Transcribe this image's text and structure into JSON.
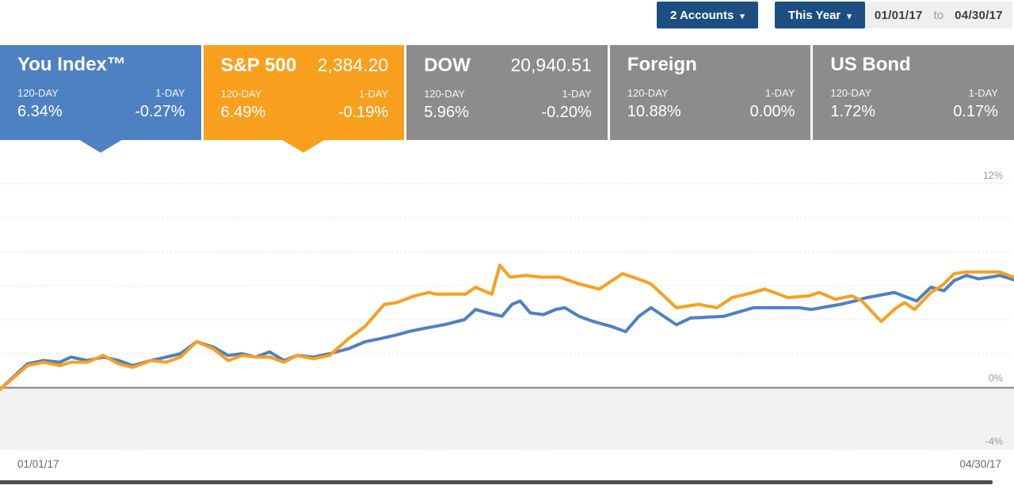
{
  "header": {
    "accounts_button": {
      "label": "2 Accounts",
      "caret": "▾"
    },
    "period_button": {
      "label": "This Year",
      "caret": "▾"
    },
    "date_range": {
      "from": "01/01/17",
      "separator": "to",
      "to": "04/30/17"
    }
  },
  "cards": [
    {
      "title": "You Index™",
      "value": "",
      "period_label": "120-DAY",
      "day_label": "1-DAY",
      "period_value": "6.34%",
      "day_value": "-0.27%",
      "color": "#4E81C2",
      "selected": true
    },
    {
      "title": "S&P 500",
      "value": "2,384.20",
      "period_label": "120-DAY",
      "day_label": "1-DAY",
      "period_value": "6.49%",
      "day_value": "-0.19%",
      "color": "#F8A01E",
      "selected": true
    },
    {
      "title": "DOW",
      "value": "20,940.51",
      "period_label": "120-DAY",
      "day_label": "1-DAY",
      "period_value": "5.96%",
      "day_value": "-0.20%",
      "color": "#8C8C8C",
      "selected": false
    },
    {
      "title": "Foreign",
      "value": "",
      "period_label": "120-DAY",
      "day_label": "1-DAY",
      "period_value": "10.88%",
      "day_value": "0.00%",
      "color": "#8C8C8C",
      "selected": false
    },
    {
      "title": "US Bond",
      "value": "",
      "period_label": "120-DAY",
      "day_label": "1-DAY",
      "period_value": "1.72%",
      "day_value": "0.17%",
      "color": "#8C8C8C",
      "selected": false
    }
  ],
  "chart_data": {
    "type": "line",
    "title": "",
    "xlabel": "",
    "ylabel": "",
    "x_axis": {
      "start_label": "01/01/17",
      "end_label": "04/30/17",
      "x_unit": "percent_of_date_range"
    },
    "y_axis": {
      "unit": "%",
      "ylim": [
        -4,
        13
      ],
      "gridline_step": 2,
      "grid": true,
      "ticks": [
        {
          "label": "12%",
          "value": 12
        },
        {
          "label": "0%",
          "value": 0
        },
        {
          "label": "-4%",
          "value": -4
        }
      ],
      "below_zero_band": true
    },
    "legend_position": "none",
    "series": [
      {
        "name": "You Index",
        "color": "#4E81C2",
        "points": [
          [
            0,
            -0.1
          ],
          [
            2.7,
            1.4
          ],
          [
            4.3,
            1.6
          ],
          [
            5.9,
            1.5
          ],
          [
            7.0,
            1.8
          ],
          [
            8.6,
            1.6
          ],
          [
            10.2,
            1.8
          ],
          [
            11.7,
            1.6
          ],
          [
            13.1,
            1.3
          ],
          [
            14.9,
            1.6
          ],
          [
            16.4,
            1.8
          ],
          [
            17.8,
            2.0
          ],
          [
            19.4,
            2.7
          ],
          [
            21.0,
            2.4
          ],
          [
            22.5,
            1.9
          ],
          [
            23.9,
            2.0
          ],
          [
            25.2,
            1.8
          ],
          [
            26.6,
            2.1
          ],
          [
            28.0,
            1.6
          ],
          [
            29.3,
            1.9
          ],
          [
            30.9,
            1.8
          ],
          [
            32.5,
            2.0
          ],
          [
            34.4,
            2.3
          ],
          [
            36.0,
            2.7
          ],
          [
            37.6,
            2.9
          ],
          [
            39.1,
            3.1
          ],
          [
            40.3,
            3.3
          ],
          [
            41.9,
            3.5
          ],
          [
            43.8,
            3.7
          ],
          [
            45.8,
            4.0
          ],
          [
            46.9,
            4.6
          ],
          [
            48.1,
            4.4
          ],
          [
            49.5,
            4.2
          ],
          [
            50.5,
            4.9
          ],
          [
            51.3,
            5.1
          ],
          [
            52.3,
            4.4
          ],
          [
            53.6,
            4.3
          ],
          [
            54.8,
            4.6
          ],
          [
            55.7,
            4.7
          ],
          [
            57.1,
            4.2
          ],
          [
            58.5,
            3.9
          ],
          [
            60.3,
            3.6
          ],
          [
            61.7,
            3.3
          ],
          [
            63.0,
            4.2
          ],
          [
            64.2,
            4.7
          ],
          [
            66.7,
            3.7
          ],
          [
            68.1,
            4.1
          ],
          [
            71.4,
            4.2
          ],
          [
            74.3,
            4.7
          ],
          [
            78.8,
            4.7
          ],
          [
            80.0,
            4.6
          ],
          [
            82.9,
            4.9
          ],
          [
            84.3,
            5.1
          ],
          [
            85.5,
            5.3
          ],
          [
            88.2,
            5.6
          ],
          [
            90.4,
            5.1
          ],
          [
            91.8,
            5.9
          ],
          [
            93.1,
            5.7
          ],
          [
            94.1,
            6.3
          ],
          [
            95.3,
            6.6
          ],
          [
            96.5,
            6.4
          ],
          [
            97.6,
            6.5
          ],
          [
            98.6,
            6.6
          ],
          [
            100,
            6.34
          ]
        ]
      },
      {
        "name": "S&P 500",
        "color": "#F8A01E",
        "points": [
          [
            0,
            -0.1
          ],
          [
            2.7,
            1.3
          ],
          [
            4.3,
            1.5
          ],
          [
            5.9,
            1.3
          ],
          [
            7.0,
            1.5
          ],
          [
            8.6,
            1.5
          ],
          [
            10.2,
            1.9
          ],
          [
            11.7,
            1.4
          ],
          [
            13.1,
            1.2
          ],
          [
            14.9,
            1.6
          ],
          [
            16.4,
            1.5
          ],
          [
            17.8,
            1.8
          ],
          [
            19.4,
            2.7
          ],
          [
            21.0,
            2.3
          ],
          [
            22.5,
            1.6
          ],
          [
            23.9,
            1.9
          ],
          [
            25.2,
            1.8
          ],
          [
            26.6,
            1.8
          ],
          [
            28.0,
            1.5
          ],
          [
            29.3,
            1.9
          ],
          [
            30.9,
            1.7
          ],
          [
            32.5,
            1.9
          ],
          [
            34.4,
            2.9
          ],
          [
            36.0,
            3.6
          ],
          [
            37.9,
            4.9
          ],
          [
            39.1,
            5.0
          ],
          [
            40.9,
            5.4
          ],
          [
            42.3,
            5.6
          ],
          [
            43.0,
            5.5
          ],
          [
            44.6,
            5.5
          ],
          [
            45.9,
            5.5
          ],
          [
            46.9,
            5.9
          ],
          [
            48.5,
            5.5
          ],
          [
            49.3,
            7.2
          ],
          [
            50.3,
            6.5
          ],
          [
            51.9,
            6.6
          ],
          [
            53.4,
            6.5
          ],
          [
            55.2,
            6.5
          ],
          [
            57.1,
            6.1
          ],
          [
            59.1,
            5.8
          ],
          [
            61.4,
            6.7
          ],
          [
            63.4,
            6.3
          ],
          [
            64.2,
            6.1
          ],
          [
            66.7,
            4.7
          ],
          [
            68.9,
            4.9
          ],
          [
            70.7,
            4.7
          ],
          [
            72.2,
            5.3
          ],
          [
            74.3,
            5.6
          ],
          [
            75.4,
            5.8
          ],
          [
            77.7,
            5.3
          ],
          [
            79.8,
            5.4
          ],
          [
            80.8,
            5.6
          ],
          [
            82.4,
            5.2
          ],
          [
            84.0,
            5.4
          ],
          [
            85.0,
            5.1
          ],
          [
            86.9,
            3.9
          ],
          [
            88.4,
            4.7
          ],
          [
            89.2,
            5.0
          ],
          [
            90.2,
            4.6
          ],
          [
            91.8,
            5.6
          ],
          [
            92.9,
            6.0
          ],
          [
            94.1,
            6.7
          ],
          [
            95.2,
            6.8
          ],
          [
            97.0,
            6.8
          ],
          [
            98.6,
            6.8
          ],
          [
            100,
            6.49
          ]
        ]
      }
    ]
  }
}
